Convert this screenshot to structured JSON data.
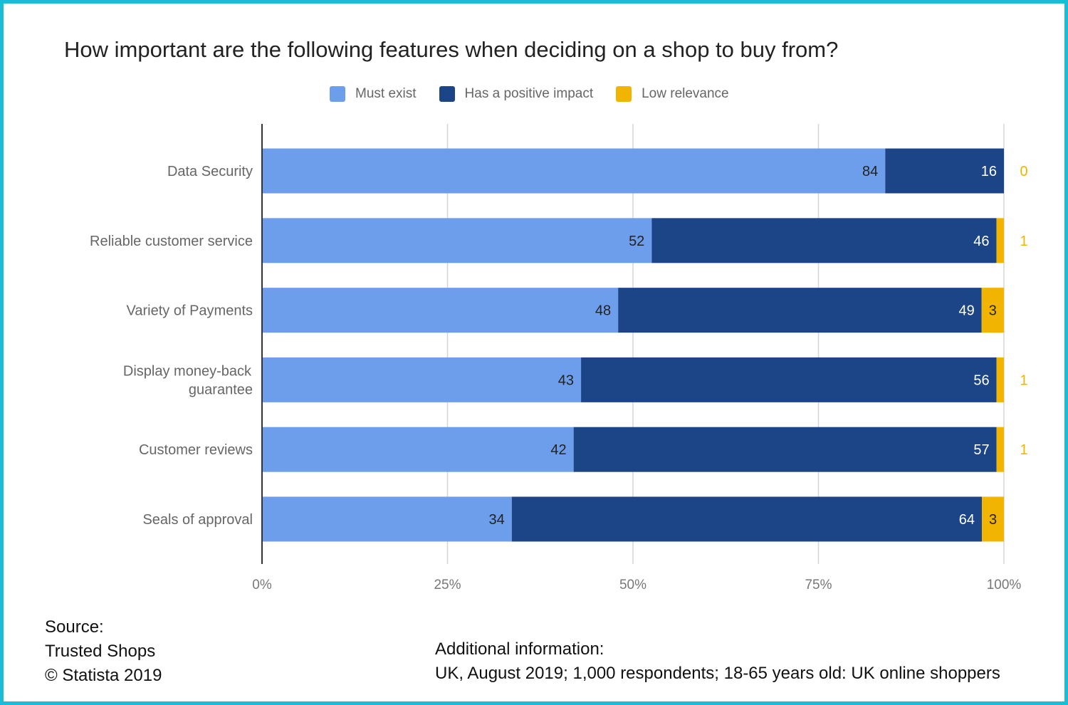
{
  "chart_data": {
    "type": "bar",
    "orientation": "horizontal",
    "stacked": "percent",
    "title": "How important are the following features when deciding on a shop to buy from?",
    "categories": [
      "Data Security",
      "Reliable customer service",
      "Variety of Payments",
      "Display money-back guarantee",
      "Customer reviews",
      "Seals of approval"
    ],
    "series": [
      {
        "name": "Must exist",
        "color": "#6d9eeb",
        "values": [
          84,
          52,
          48,
          43,
          42,
          34
        ]
      },
      {
        "name": "Has a positive impact",
        "color": "#1c4587",
        "values": [
          16,
          46,
          49,
          56,
          57,
          64
        ]
      },
      {
        "name": "Low relevance",
        "color": "#f1b400",
        "values": [
          0,
          1,
          3,
          1,
          1,
          3
        ]
      }
    ],
    "xlim": [
      0,
      100
    ],
    "x_ticks": [
      "0%",
      "25%",
      "50%",
      "75%",
      "100%"
    ],
    "grid": true,
    "legend": "top-center",
    "border_color": "#1cbcd6"
  },
  "source": {
    "label": "Source:",
    "name": "Trusted Shops",
    "copyright": "© Statista 2019"
  },
  "additional": {
    "label": "Additional information:",
    "text": "UK, August 2019; 1,000 respondents; 18-65 years old: UK online shoppers"
  }
}
